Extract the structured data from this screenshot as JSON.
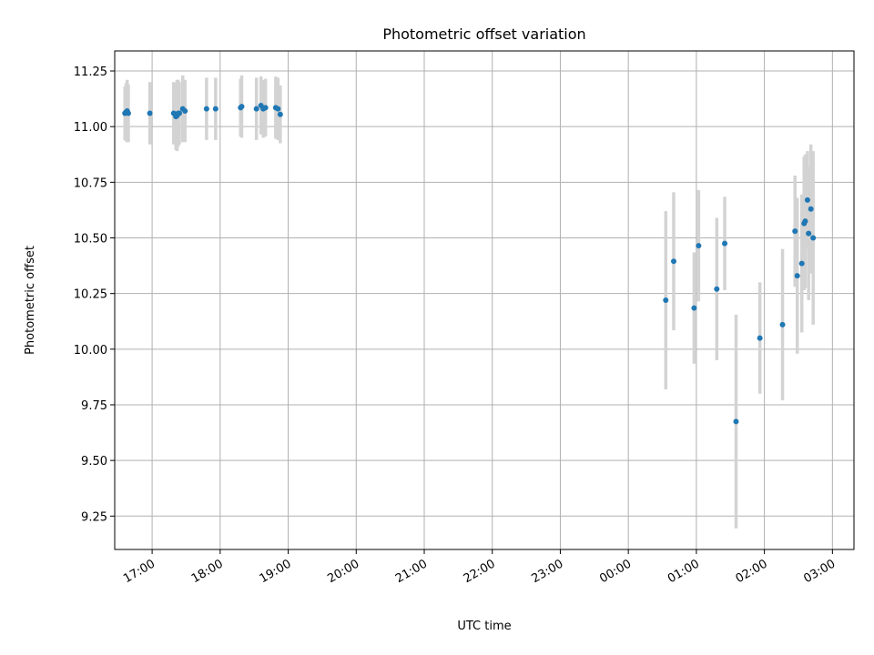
{
  "chart_data": {
    "type": "scatter",
    "title": "Photometric offset variation",
    "xlabel": "UTC time",
    "ylabel": "Photometric offset",
    "xlim": [
      "16:27",
      "03:19"
    ],
    "ylim": [
      9.1,
      11.34
    ],
    "grid": true,
    "x_ticks": [
      "17:00",
      "18:00",
      "19:00",
      "20:00",
      "21:00",
      "22:00",
      "23:00",
      "00:00",
      "01:00",
      "02:00",
      "03:00"
    ],
    "y_ticks": [
      "9.25",
      "9.50",
      "9.75",
      "10.00",
      "10.25",
      "10.50",
      "10.75",
      "11.00",
      "11.25"
    ],
    "colors": {
      "point": "#1f77b4",
      "errorbar": "#d3d3d3",
      "grid": "#b0b0b0"
    },
    "series": [
      {
        "x": [
          "16:36",
          "16:37",
          "16:38",
          "16:39",
          "16:58",
          "17:19",
          "17:21",
          "17:22",
          "17:23",
          "17:24",
          "17:27",
          "17:29",
          "17:48",
          "17:56",
          "18:18",
          "18:19",
          "18:32",
          "18:36",
          "18:38",
          "18:40",
          "18:49",
          "18:51",
          "18:53"
        ],
        "y": [
          11.06,
          11.065,
          11.07,
          11.06,
          11.06,
          11.06,
          11.045,
          11.05,
          11.06,
          11.06,
          11.08,
          11.07,
          11.08,
          11.08,
          11.085,
          11.09,
          11.08,
          11.095,
          11.08,
          11.085,
          11.085,
          11.08,
          11.055
        ],
        "yerr": [
          0.12,
          0.13,
          0.14,
          0.13,
          0.14,
          0.14,
          0.15,
          0.16,
          0.15,
          0.14,
          0.15,
          0.14,
          0.14,
          0.14,
          0.13,
          0.14,
          0.14,
          0.13,
          0.13,
          0.13,
          0.14,
          0.14,
          0.13
        ]
      },
      {
        "x": [
          "00:33",
          "00:40",
          "00:58",
          "01:02",
          "01:18",
          "01:25",
          "01:35",
          "01:56",
          "02:16",
          "02:27",
          "02:29",
          "02:33",
          "02:35",
          "02:36",
          "02:38",
          "02:39",
          "02:41",
          "02:43"
        ],
        "y": [
          10.22,
          10.395,
          10.185,
          10.465,
          10.27,
          10.475,
          9.675,
          10.05,
          10.11,
          10.53,
          10.33,
          10.385,
          10.565,
          10.575,
          10.67,
          10.52,
          10.63,
          10.5
        ],
        "yerr": [
          0.4,
          0.31,
          0.25,
          0.25,
          0.32,
          0.21,
          0.48,
          0.25,
          0.34,
          0.25,
          0.35,
          0.31,
          0.3,
          0.3,
          0.22,
          0.3,
          0.29,
          0.39
        ]
      }
    ]
  }
}
